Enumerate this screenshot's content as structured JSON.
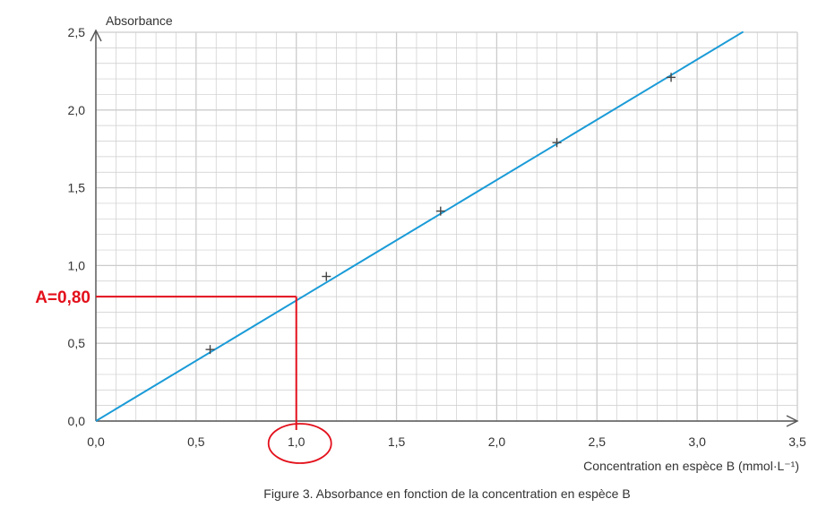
{
  "chart_data": {
    "type": "scatter",
    "xlabel": "Concentration en espèce B (mmol·L⁻¹)",
    "ylabel": "Absorbance",
    "caption": "Figure 3. Absorbance en fonction de la concentration en espèce B",
    "xlim": [
      0,
      3.5
    ],
    "ylim": [
      0,
      2.5
    ],
    "x_ticks": [
      0,
      0.5,
      1,
      1.5,
      2,
      2.5,
      3,
      3.5
    ],
    "x_tick_labels": [
      "0,0",
      "0,5",
      "1,0",
      "1,5",
      "2,0",
      "2,5",
      "3,0",
      "3,5"
    ],
    "y_ticks": [
      0,
      0.5,
      1,
      1.5,
      2,
      2.5
    ],
    "y_tick_labels": [
      "0,0",
      "0,5",
      "1,0",
      "1,5",
      "2,0",
      "2,5"
    ],
    "grid": true,
    "grid_minor_step": {
      "x": 0.1,
      "y": 0.1
    },
    "points": [
      {
        "x": 0.57,
        "y": 0.46
      },
      {
        "x": 1.15,
        "y": 0.93
      },
      {
        "x": 1.72,
        "y": 1.35
      },
      {
        "x": 2.3,
        "y": 1.79
      },
      {
        "x": 2.87,
        "y": 2.21
      }
    ],
    "fit_line": {
      "slope": 0.775,
      "intercept": 0.0,
      "x_end": 3.23
    },
    "annotation": {
      "label": "A=0,80",
      "x": 1.0,
      "y": 0.8,
      "highlight_tick": "1,0"
    },
    "colors": {
      "fit_line": "#1a9bd7",
      "grid": "#cccccc",
      "axis": "#555555",
      "marker": "#444444",
      "annotation": "#e3101b"
    }
  }
}
